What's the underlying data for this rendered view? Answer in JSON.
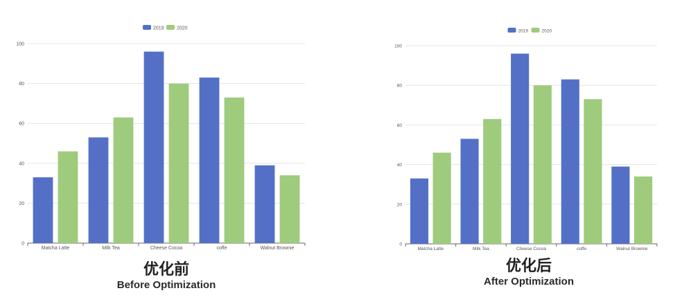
{
  "colors": {
    "s2019": "#5470c6",
    "s2020": "#9fcb7d",
    "grid": "#e4e4e4",
    "axis": "#666666",
    "label": "#555555"
  },
  "charts": [
    {
      "caption_zh": "优化前",
      "caption_en": "Before Optimization"
    },
    {
      "caption_zh": "优化后",
      "caption_en": "After Optimization"
    }
  ],
  "chart_data": [
    {
      "type": "bar",
      "categories": [
        "Matcha Latte",
        "Milk Tea",
        "Cheese Cocoa",
        "coffe",
        "Walnut Brownie"
      ],
      "series": [
        {
          "name": "2019",
          "values": [
            33,
            53,
            96,
            83,
            39
          ]
        },
        {
          "name": "2020",
          "values": [
            46,
            63,
            80,
            73,
            34
          ]
        }
      ],
      "ylim": [
        0,
        100
      ],
      "yticks": [
        "0",
        "20",
        "40",
        "60",
        "80",
        "100"
      ],
      "legend": "top-center",
      "grid": true,
      "title": "",
      "xlabel": "",
      "ylabel": ""
    },
    {
      "type": "bar",
      "categories": [
        "Matcha Latte",
        "Milk Tea",
        "Cheese Cocoa",
        "coffe",
        "Walnut Brownie"
      ],
      "series": [
        {
          "name": "2019",
          "values": [
            33,
            53,
            96,
            83,
            39
          ]
        },
        {
          "name": "2020",
          "values": [
            46,
            63,
            80,
            73,
            34
          ]
        }
      ],
      "ylim": [
        0,
        100
      ],
      "yticks": [
        "0",
        "20",
        "40",
        "60",
        "80",
        "100"
      ],
      "legend": "top-center",
      "grid": true,
      "title": "",
      "xlabel": "",
      "ylabel": ""
    }
  ]
}
